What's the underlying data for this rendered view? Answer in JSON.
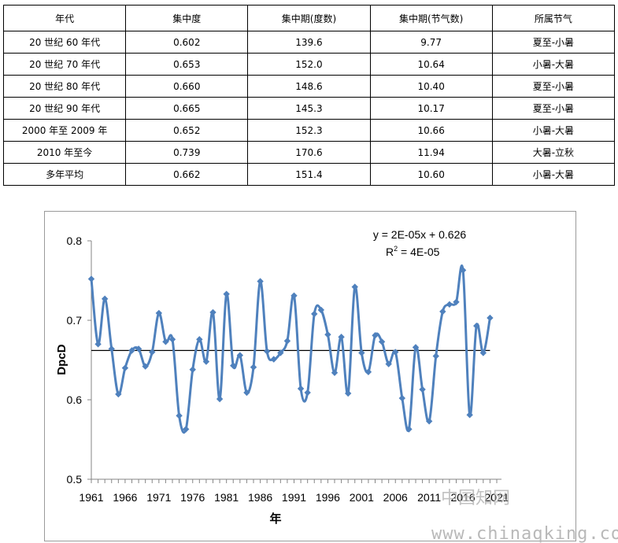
{
  "table": {
    "headers": [
      "年代",
      "集中度",
      "集中期(度数)",
      "集中期(节气数)",
      "所属节气"
    ],
    "rows": [
      [
        "20 世纪 60 年代",
        "0.602",
        "139.6",
        "9.77",
        "夏至-小暑"
      ],
      [
        "20 世纪 70 年代",
        "0.653",
        "152.0",
        "10.64",
        "小暑-大暑"
      ],
      [
        "20 世纪 80 年代",
        "0.660",
        "148.6",
        "10.40",
        "夏至-小暑"
      ],
      [
        "20 世纪 90 年代",
        "0.665",
        "145.3",
        "10.17",
        "夏至-小暑"
      ],
      [
        "2000 年至 2009 年",
        "0.652",
        "152.3",
        "10.66",
        "小暑-大暑"
      ],
      [
        "2010 年至今",
        "0.739",
        "170.6",
        "11.94",
        "大暑-立秋"
      ],
      [
        "多年平均",
        "0.662",
        "151.4",
        "10.60",
        "小暑-大暑"
      ]
    ]
  },
  "chart_data": {
    "type": "line",
    "xlabel": "年",
    "ylabel": "DpcD",
    "ylim": [
      0.5,
      0.8
    ],
    "yticks": [
      "0.5",
      "0.6",
      "0.7",
      "0.8"
    ],
    "xticks": [
      "1961",
      "1966",
      "1971",
      "1976",
      "1981",
      "1986",
      "1991",
      "1996",
      "2001",
      "2006",
      "2011",
      "2016",
      "2021"
    ],
    "xlim": [
      1961,
      2021
    ],
    "series": [
      {
        "name": "DpcD",
        "color": "#4f81bd",
        "x": [
          1961,
          1962,
          1963,
          1964,
          1965,
          1966,
          1967,
          1968,
          1969,
          1970,
          1971,
          1972,
          1973,
          1974,
          1975,
          1976,
          1977,
          1978,
          1979,
          1980,
          1981,
          1982,
          1983,
          1984,
          1985,
          1986,
          1987,
          1988,
          1989,
          1990,
          1991,
          1992,
          1993,
          1994,
          1995,
          1996,
          1997,
          1998,
          1999,
          2000,
          2001,
          2002,
          2003,
          2004,
          2005,
          2006,
          2007,
          2008,
          2009,
          2010,
          2011,
          2012,
          2013,
          2014,
          2015,
          2016,
          2017,
          2018,
          2019,
          2020
        ],
        "values": [
          0.752,
          0.67,
          0.727,
          0.664,
          0.607,
          0.64,
          0.662,
          0.664,
          0.642,
          0.66,
          0.709,
          0.673,
          0.676,
          0.58,
          0.563,
          0.638,
          0.676,
          0.648,
          0.71,
          0.601,
          0.733,
          0.643,
          0.656,
          0.609,
          0.641,
          0.749,
          0.661,
          0.651,
          0.659,
          0.674,
          0.731,
          0.614,
          0.609,
          0.708,
          0.713,
          0.682,
          0.634,
          0.679,
          0.608,
          0.742,
          0.659,
          0.635,
          0.681,
          0.673,
          0.645,
          0.66,
          0.602,
          0.563,
          0.666,
          0.613,
          0.573,
          0.655,
          0.711,
          0.72,
          0.723,
          0.763,
          0.581,
          0.693,
          0.659,
          0.703
        ]
      }
    ],
    "trendline": {
      "slope": 2e-05,
      "intercept": 0.626,
      "y_mean": 0.662,
      "color": "#000000"
    },
    "annotations": {
      "equation": "y = 2E-05x + 0.626",
      "r2_prefix": "R",
      "r2_sup": "2",
      "r2_rest": " = 4E-05"
    }
  },
  "watermark": {
    "text1": "中国知网",
    "text2": "www.chinaqking.com"
  }
}
